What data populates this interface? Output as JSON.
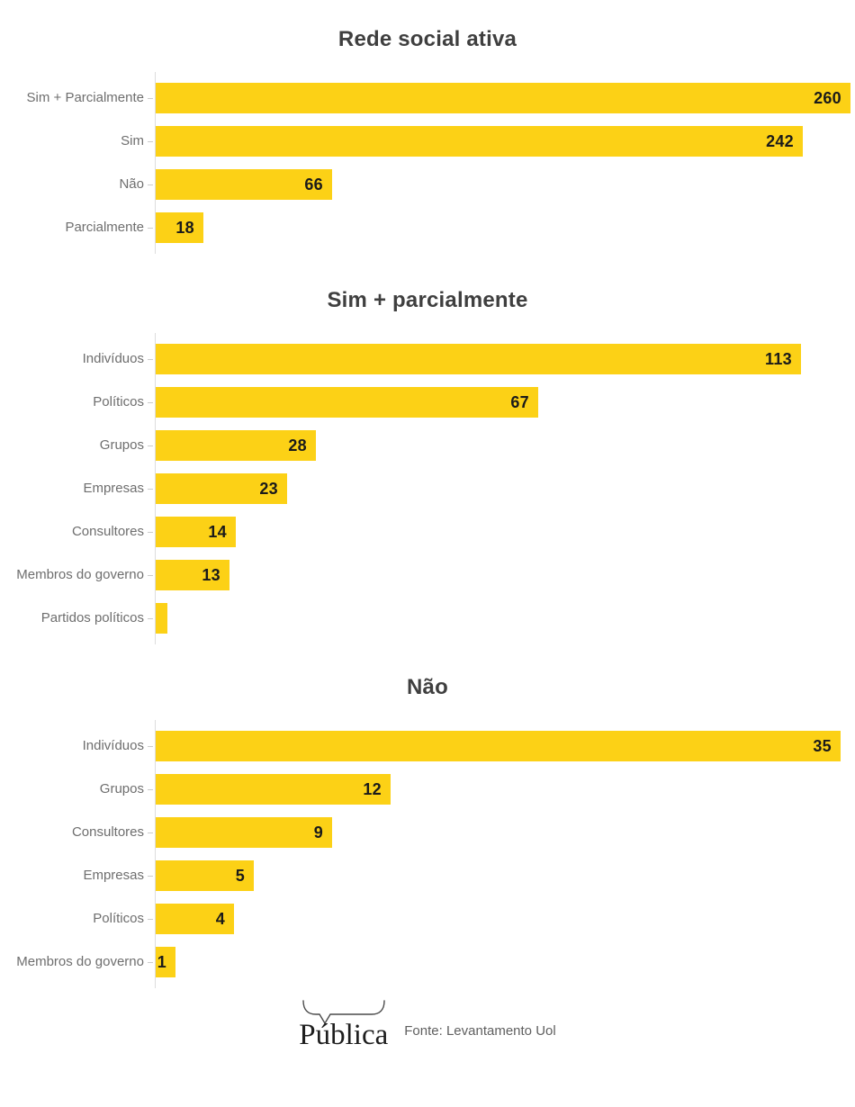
{
  "colors": {
    "background": "#FFFFFF",
    "bar": "#FCD116",
    "chart_title": "#3F3F3F",
    "category_label": "#6E6E6E",
    "value_label": "#1A1A1A",
    "axis_line": "#DDDDDD",
    "tick": "#CCCCCC",
    "logo_text": "#1E1E1E",
    "source_text": "#5F5F5F"
  },
  "chart_data": [
    {
      "type": "bar",
      "orientation": "horizontal",
      "title": "Rede social ativa",
      "categories": [
        "Sim + Parcialmente",
        "Sim",
        "Não",
        "Parcialmente"
      ],
      "values": [
        260,
        242,
        66,
        18
      ],
      "value_labels": [
        "260",
        "242",
        "66",
        "18"
      ],
      "xlim": [
        0,
        260
      ],
      "grid": false,
      "legend": "none",
      "value_labels_position": "inside-end"
    },
    {
      "type": "bar",
      "orientation": "horizontal",
      "title": "Sim + parcialmente",
      "categories": [
        "Indivíduos",
        "Políticos",
        "Grupos",
        "Empresas",
        "Consultores",
        "Membros do governo",
        "Partidos políticos"
      ],
      "values": [
        113,
        67,
        28,
        23,
        14,
        13,
        2
      ],
      "value_labels": [
        "113",
        "67",
        "28",
        "23",
        "14",
        "13",
        ""
      ],
      "xlim": [
        0,
        121
      ],
      "grid": false,
      "legend": "none",
      "value_labels_position": "inside-end"
    },
    {
      "type": "bar",
      "orientation": "horizontal",
      "title": "Não",
      "categories": [
        "Indivíduos",
        "Grupos",
        "Consultores",
        "Empresas",
        "Políticos",
        "Membros do governo"
      ],
      "values": [
        35,
        12,
        9,
        5,
        4,
        1
      ],
      "value_labels": [
        "35",
        "12",
        "9",
        "5",
        "4",
        "1"
      ],
      "xlim": [
        0,
        35
      ],
      "grid": false,
      "legend": "none",
      "value_labels_position": "inside-end"
    }
  ],
  "footer": {
    "logo_text": "Pública",
    "source_text": "Fonte: Levantamento Uol"
  }
}
